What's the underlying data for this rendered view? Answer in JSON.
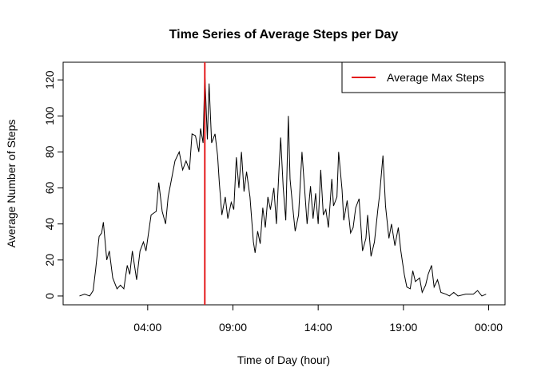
{
  "chart_data": {
    "type": "line",
    "title": "Time Series of Average Steps per Day",
    "x_label": "Time of Day (hour)",
    "y_label": "Average Number of Steps",
    "x": [
      0,
      0.3,
      0.6,
      0.8,
      0.95,
      1.15,
      1.3,
      1.4,
      1.6,
      1.75,
      1.95,
      2.2,
      2.4,
      2.6,
      2.8,
      2.95,
      3.1,
      3.35,
      3.55,
      3.75,
      3.9,
      4.05,
      4.2,
      4.5,
      4.65,
      4.85,
      5.05,
      5.2,
      5.4,
      5.6,
      5.85,
      6.05,
      6.25,
      6.45,
      6.6,
      6.8,
      7.0,
      7.1,
      7.25,
      7.35,
      7.5,
      7.6,
      7.75,
      7.95,
      8.1,
      8.2,
      8.35,
      8.55,
      8.7,
      8.9,
      9.05,
      9.2,
      9.35,
      9.5,
      9.65,
      9.8,
      10,
      10.2,
      10.3,
      10.45,
      10.6,
      10.75,
      10.9,
      11.05,
      11.2,
      11.4,
      11.55,
      11.7,
      11.8,
      11.95,
      12.1,
      12.25,
      12.35,
      12.5,
      12.65,
      12.85,
      13.05,
      13.2,
      13.35,
      13.55,
      13.7,
      13.85,
      14,
      14.15,
      14.3,
      14.45,
      14.6,
      14.8,
      14.9,
      15.1,
      15.2,
      15.4,
      15.5,
      15.7,
      15.9,
      16.05,
      16.2,
      16.4,
      16.6,
      16.8,
      16.9,
      17.1,
      17.3,
      17.5,
      17.6,
      17.8,
      17.95,
      18.15,
      18.3,
      18.5,
      18.7,
      18.85,
      19.05,
      19.2,
      19.4,
      19.55,
      19.7,
      19.95,
      20.1,
      20.3,
      20.45,
      20.65,
      20.8,
      21,
      21.2,
      21.5,
      21.7,
      21.95,
      22.2,
      22.65,
      23.1,
      23.35,
      23.6,
      23.85
    ],
    "values": [
      0,
      1,
      0,
      3,
      15,
      33,
      35,
      41,
      20,
      25,
      10,
      4,
      6,
      4,
      17,
      12,
      25,
      9,
      25,
      30,
      25,
      35,
      45,
      47,
      63,
      47,
      40,
      55,
      65,
      75,
      80,
      70,
      75,
      70,
      90,
      89,
      80,
      93,
      85,
      124,
      87,
      118,
      85,
      90,
      78,
      63,
      45,
      55,
      43,
      52,
      48,
      77,
      60,
      80,
      58,
      69,
      55,
      30,
      24,
      36,
      29,
      49,
      38,
      55,
      48,
      60,
      40,
      70,
      88,
      60,
      42,
      100,
      65,
      50,
      36,
      45,
      80,
      60,
      40,
      61,
      43,
      57,
      40,
      70,
      45,
      48,
      38,
      65,
      50,
      55,
      80,
      59,
      42,
      53,
      35,
      38,
      49,
      54,
      25,
      32,
      45,
      22,
      30,
      48,
      56,
      78,
      50,
      32,
      40,
      28,
      38,
      25,
      12,
      5,
      4,
      14,
      8,
      10,
      2,
      6,
      12,
      17,
      5,
      9,
      2,
      1,
      0,
      2,
      0,
      1,
      1,
      3,
      0,
      1
    ],
    "color": "#000000",
    "vline": {
      "name": "Average Max Steps",
      "value": 7.35,
      "color": "#e41a1c"
    },
    "legend": "topright",
    "xlim": [
      -0.96,
      24.96
    ],
    "xticks": [
      {
        "value": 4,
        "label": "04:00"
      },
      {
        "value": 9,
        "label": "09:00"
      },
      {
        "value": 14,
        "label": "14:00"
      },
      {
        "value": 19,
        "label": "19:00"
      },
      {
        "value": 24,
        "label": "00:00"
      }
    ],
    "ylim": [
      -4.9,
      129.8
    ],
    "yticks": [
      0,
      20,
      40,
      60,
      80,
      100,
      120
    ]
  }
}
